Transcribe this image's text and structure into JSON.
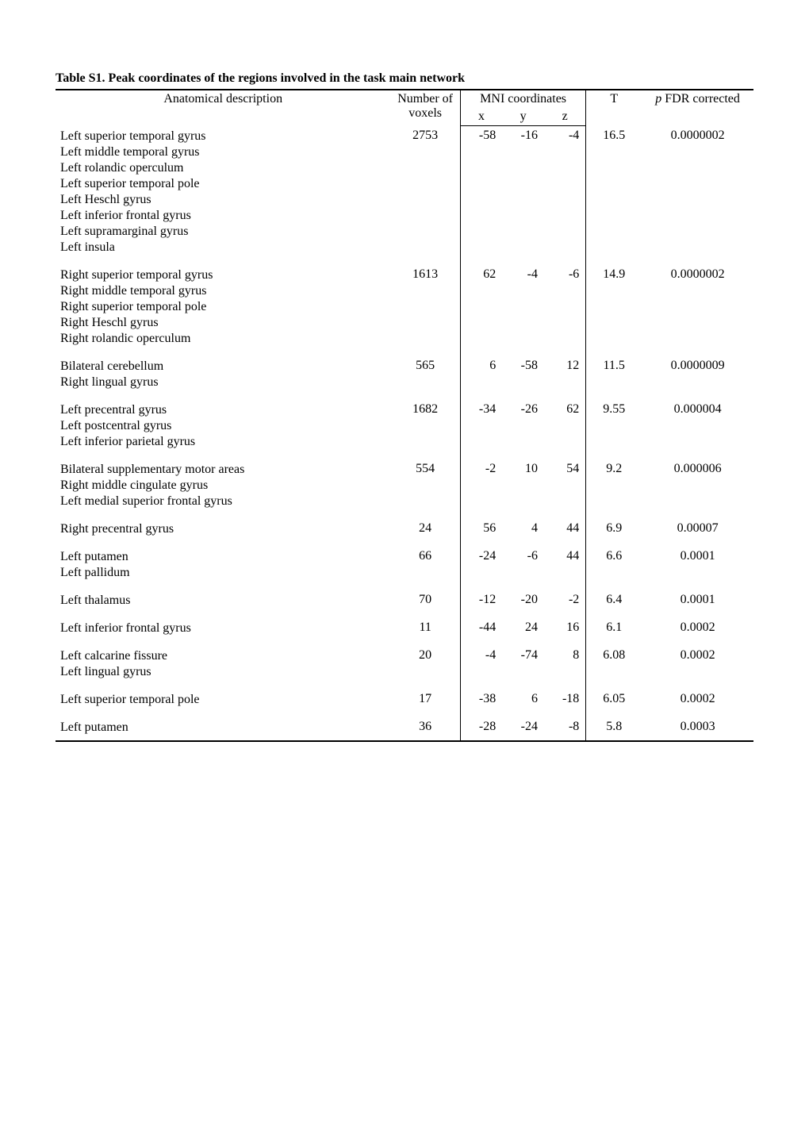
{
  "caption": "Table S1. Peak coordinates of the regions involved in the task main network",
  "headers": {
    "anatomical": "Anatomical description",
    "voxels": "Number of voxels",
    "mni": "MNI coordinates",
    "x": "x",
    "y": "y",
    "z": "z",
    "t": "T",
    "p": "p FDR corrected",
    "p_prefix": "p",
    "p_rest": " FDR corrected"
  },
  "rows": [
    {
      "anat": [
        "Left superior temporal gyrus",
        "Left middle temporal gyrus",
        "Left rolandic operculum",
        "Left superior temporal pole",
        "Left Heschl gyrus",
        "Left inferior frontal gyrus",
        "Left supramarginal gyrus",
        "Left insula"
      ],
      "voxels": "2753",
      "x": "-58",
      "y": "-16",
      "z": "-4",
      "t": "16.5",
      "p": "0.0000002"
    },
    {
      "anat": [
        "Right superior temporal gyrus",
        "Right middle temporal gyrus",
        "Right superior temporal pole",
        "Right Heschl gyrus",
        "Right rolandic operculum"
      ],
      "voxels": "1613",
      "x": "62",
      "y": "-4",
      "z": "-6",
      "t": "14.9",
      "p": "0.0000002"
    },
    {
      "anat": [
        "Bilateral cerebellum",
        "Right lingual gyrus"
      ],
      "voxels": "565",
      "x": "6",
      "y": "-58",
      "z": "12",
      "t": "11.5",
      "p": "0.0000009"
    },
    {
      "anat": [
        "Left precentral gyrus",
        "Left postcentral gyrus",
        "Left inferior parietal gyrus"
      ],
      "voxels": "1682",
      "x": "-34",
      "y": "-26",
      "z": "62",
      "t": "9.55",
      "p": "0.000004"
    },
    {
      "anat": [
        "Bilateral supplementary motor areas",
        "Right middle cingulate gyrus",
        "Left medial superior frontal gyrus"
      ],
      "voxels": "554",
      "x": "-2",
      "y": "10",
      "z": "54",
      "t": "9.2",
      "p": "0.000006"
    },
    {
      "anat": [
        "Right precentral gyrus"
      ],
      "voxels": "24",
      "x": "56",
      "y": "4",
      "z": "44",
      "t": "6.9",
      "p": "0.00007"
    },
    {
      "anat": [
        "Left putamen",
        "Left pallidum"
      ],
      "voxels": "66",
      "x": "-24",
      "y": "-6",
      "z": "44",
      "t": "6.6",
      "p": "0.0001"
    },
    {
      "anat": [
        "Left thalamus"
      ],
      "voxels": "70",
      "x": "-12",
      "y": "-20",
      "z": "-2",
      "t": "6.4",
      "p": "0.0001"
    },
    {
      "anat": [
        "Left inferior frontal gyrus"
      ],
      "voxels": "11",
      "x": "-44",
      "y": "24",
      "z": "16",
      "t": "6.1",
      "p": "0.0002"
    },
    {
      "anat": [
        "Left calcarine fissure",
        "Left lingual gyrus"
      ],
      "voxels": "20",
      "x": "-4",
      "y": "-74",
      "z": "8",
      "t": "6.08",
      "p": "0.0002"
    },
    {
      "anat": [
        "Left superior temporal pole"
      ],
      "voxels": "17",
      "x": "-38",
      "y": "6",
      "z": "-18",
      "t": "6.05",
      "p": "0.0002"
    },
    {
      "anat": [
        "Left putamen"
      ],
      "voxels": "36",
      "x": "-28",
      "y": "-24",
      "z": "-8",
      "t": "5.8",
      "p": "0.0003"
    }
  ]
}
